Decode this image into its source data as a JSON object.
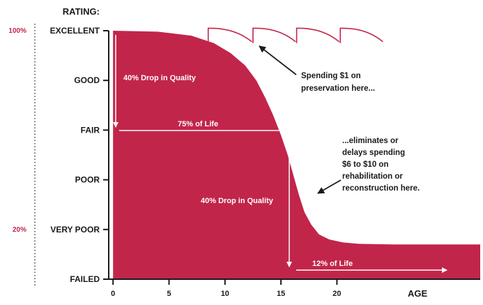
{
  "chart_data": {
    "type": "area",
    "title": "",
    "y_axis_title": "RATING:",
    "xlabel": "AGE",
    "x_ticks": [
      0,
      5,
      10,
      15,
      20
    ],
    "xlim": [
      -0.2,
      32.8
    ],
    "ylim": [
      0,
      5
    ],
    "y_categories": [
      {
        "label": "EXCELLENT",
        "value": 5
      },
      {
        "label": "GOOD",
        "value": 4
      },
      {
        "label": "FAIR",
        "value": 3
      },
      {
        "label": "POOR",
        "value": 2
      },
      {
        "label": "VERY POOR",
        "value": 1
      },
      {
        "label": "FAILED",
        "value": 0
      }
    ],
    "percent_labels": [
      {
        "label": "100%",
        "value": 5
      },
      {
        "label": "20%",
        "value": 1
      }
    ],
    "curve": {
      "x": [
        0,
        4,
        7,
        9,
        10.5,
        11.8,
        12.8,
        13.6,
        14.3,
        15.0,
        15.6,
        16.1,
        16.6,
        17.1,
        17.7,
        18.4,
        19.3,
        20.5,
        22,
        25,
        28,
        32.8
      ],
      "y": [
        5,
        4.98,
        4.9,
        4.75,
        4.55,
        4.3,
        4.0,
        3.65,
        3.3,
        2.9,
        2.5,
        2.1,
        1.7,
        1.35,
        1.1,
        0.9,
        0.8,
        0.74,
        0.71,
        0.7,
        0.7,
        0.7
      ]
    },
    "preservation_arcs": {
      "start_x": [
        8.5,
        12.5,
        16.4,
        20.3
      ],
      "end_x": [
        12.4,
        16.3,
        20.2,
        24.1
      ],
      "top_y": 5.05,
      "drop_y": 4.75
    },
    "annotations": {
      "drop1": "40% Drop in Quality",
      "life75": "75% of Life",
      "drop2": "40% Drop in Quality",
      "life12": "12% of Life",
      "spend_line1": "Spending $1 on",
      "spend_line2": "preservation here...",
      "elim_lines": [
        "...eliminates or",
        "delays spending",
        "$6 to $10 on",
        "rehabilitation or",
        "reconstruction here."
      ]
    },
    "colors": {
      "fill": "#c2254a",
      "text": "#1a1a1a",
      "percent": "#c2254a"
    }
  }
}
